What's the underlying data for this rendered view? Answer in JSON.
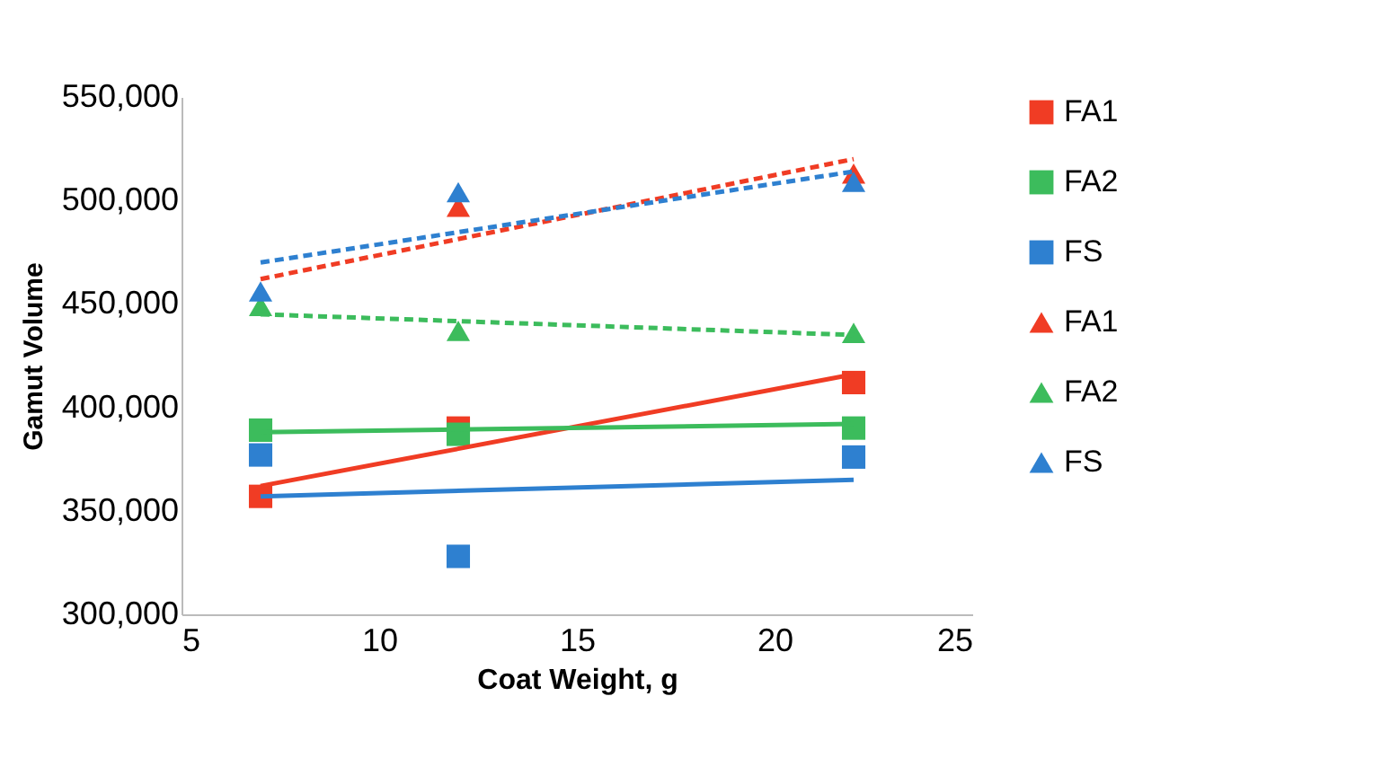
{
  "chart_data": {
    "type": "scatter",
    "xlabel": "Coat Weight, g",
    "ylabel": "Gamut Volume",
    "xlim": [
      5,
      25
    ],
    "xticks": [
      5,
      10,
      15,
      20,
      25
    ],
    "ylim": [
      300000,
      550000
    ],
    "yticks": [
      {
        "value": 300000,
        "label": "300,000"
      },
      {
        "value": 350000,
        "label": "350,000"
      },
      {
        "value": 400000,
        "label": "400,000"
      },
      {
        "value": 450000,
        "label": "450,000"
      },
      {
        "value": 500000,
        "label": "500,000"
      },
      {
        "value": 550000,
        "label": "550,000"
      }
    ],
    "grid": false,
    "legend": "right",
    "series": [
      {
        "name": "FA1",
        "color": "#f03c24",
        "marker": "square",
        "x": [
          7,
          12,
          22
        ],
        "values": [
          357000,
          390000,
          412000
        ]
      },
      {
        "name": "FA2",
        "color": "#3cbc5c",
        "marker": "square",
        "x": [
          7,
          12,
          22
        ],
        "values": [
          389000,
          387000,
          390000
        ]
      },
      {
        "name": "FS",
        "color": "#2e80d0",
        "marker": "square",
        "x": [
          7,
          12,
          22
        ],
        "values": [
          377000,
          328000,
          376000
        ]
      },
      {
        "name": "FA1",
        "color": "#f03c24",
        "marker": "triangle",
        "x": [
          12,
          22
        ],
        "values": [
          497000,
          513000
        ]
      },
      {
        "name": "FA2",
        "color": "#3cbc5c",
        "marker": "triangle",
        "x": [
          7,
          12,
          22
        ],
        "values": [
          449000,
          437000,
          436000
        ]
      },
      {
        "name": "FS",
        "color": "#2e80d0",
        "marker": "triangle",
        "x": [
          7,
          12,
          22
        ],
        "values": [
          456000,
          504000,
          509000
        ]
      },
      {
        "type": "line",
        "color": "#f03c24",
        "line_style": "solid",
        "x": [
          7,
          22
        ],
        "values": [
          362000,
          416000
        ]
      },
      {
        "type": "line",
        "color": "#3cbc5c",
        "line_style": "solid",
        "x": [
          7,
          22
        ],
        "values": [
          388000,
          392000
        ]
      },
      {
        "type": "line",
        "color": "#2e80d0",
        "line_style": "solid",
        "x": [
          7,
          22
        ],
        "values": [
          357000,
          365000
        ]
      },
      {
        "type": "line",
        "color": "#f03c24",
        "line_style": "dashed",
        "x": [
          7,
          22
        ],
        "values": [
          462000,
          520000
        ]
      },
      {
        "type": "line",
        "color": "#3cbc5c",
        "line_style": "dashed",
        "x": [
          7,
          22
        ],
        "values": [
          445000,
          435000
        ]
      },
      {
        "type": "line",
        "color": "#2e80d0",
        "line_style": "dashed",
        "x": [
          7,
          22
        ],
        "values": [
          470000,
          514000
        ]
      }
    ]
  }
}
